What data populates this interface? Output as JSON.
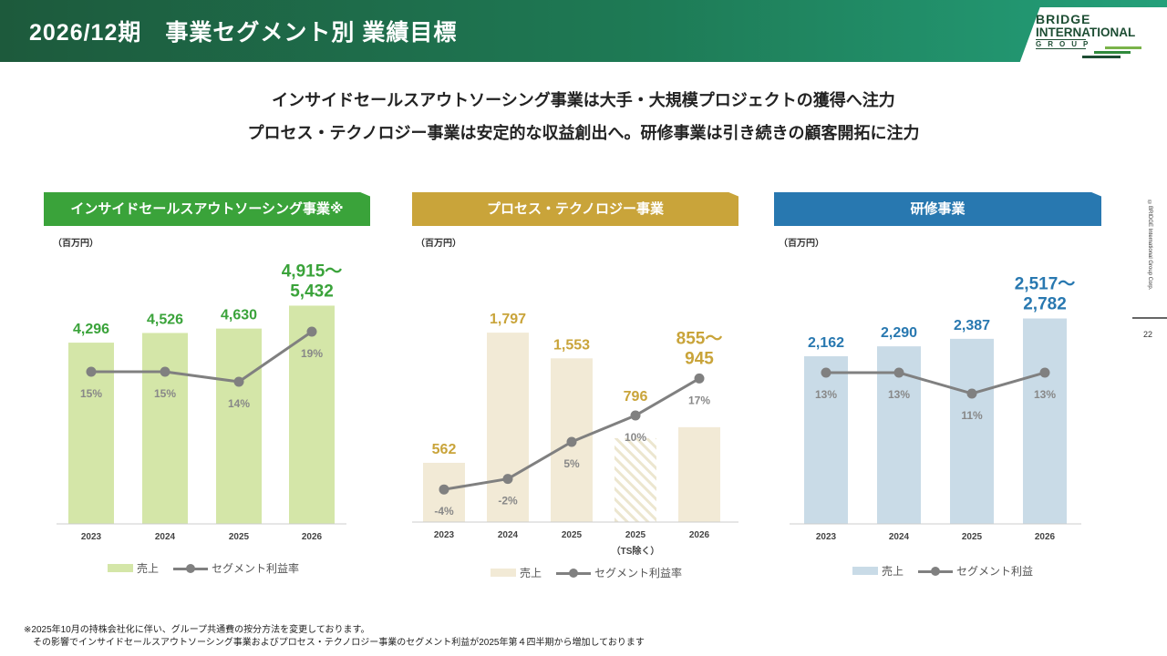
{
  "header": {
    "title": "2026/12期　事業セグメント別 業績目標"
  },
  "logo": {
    "line1": "BRIDGE",
    "line2": "INTERNATIONAL",
    "line3": "GROUP"
  },
  "lead": [
    "インサイドセールスアウトソーシング事業は大手・大規模プロジェクトの獲得へ注力",
    "プロセス・テクノロジー事業は安定的な収益創出へ。研修事業は引き続きの顧客開拓に注力"
  ],
  "colors": {
    "green": "#3aa33a",
    "gold": "#c9a43a",
    "blue": "#2878b0"
  },
  "chart_data": [
    {
      "type": "bar",
      "title": "インサイドセールスアウトソーシング事業※",
      "unit": "（百万円）",
      "categories": [
        "2023",
        "2024",
        "2025",
        "2026"
      ],
      "values": [
        4296,
        4526,
        4630,
        5173.5
      ],
      "value_labels": [
        "4,296",
        "4,526",
        "4,630",
        "4,915～\n5,432"
      ],
      "margin": [
        15,
        15,
        14,
        19
      ],
      "margin_labels": [
        "15%",
        "15%",
        "14%",
        "19%"
      ],
      "legend": [
        "売上",
        "セグメント利益率"
      ]
    },
    {
      "type": "bar",
      "title": "プロセス・テクノロジー事業",
      "unit": "（百万円）",
      "categories": [
        "2023",
        "2024",
        "2025",
        "2025\n（TS除く）",
        "2026"
      ],
      "values": [
        562,
        1797,
        1553,
        796,
        900
      ],
      "value_labels": [
        "562",
        "1,797",
        "1,553",
        "796",
        "855～\n945"
      ],
      "margin": [
        -4,
        -2,
        5,
        10,
        17
      ],
      "margin_labels": [
        "-4%",
        "-2%",
        "5%",
        "10%",
        "17%"
      ],
      "legend": [
        "売上",
        "セグメント利益率"
      ]
    },
    {
      "type": "bar",
      "title": "研修事業",
      "unit": "（百万円）",
      "categories": [
        "2023",
        "2024",
        "2025",
        "2026"
      ],
      "values": [
        2162,
        2290,
        2387,
        2649.5
      ],
      "value_labels": [
        "2,162",
        "2,290",
        "2,387",
        "2,517～\n2,782"
      ],
      "margin": [
        13,
        13,
        11,
        13
      ],
      "margin_labels": [
        "13%",
        "13%",
        "11%",
        "13%"
      ],
      "legend": [
        "売上",
        "セグメント利益"
      ]
    }
  ],
  "notes": [
    "※2025年10月の持株会社化に伴い、グループ共通費の按分方法を変更しております。",
    "　その影響でインサイドセールスアウトソーシング事業およびプロセス・テクノロジー事業のセグメント利益が2025年第４四半期から増加しております"
  ],
  "footer": {
    "copyright": "©BRIDGE International Group Corp.",
    "page": "22"
  }
}
